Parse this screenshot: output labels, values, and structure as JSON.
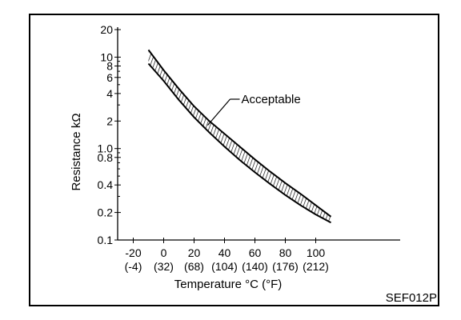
{
  "chart_data": {
    "type": "area",
    "xlabel": "Temperature °C (°F)",
    "ylabel": "Resistance kΩ",
    "yscale": "log",
    "xlim": [
      -30,
      150
    ],
    "ylim": [
      0.1,
      20
    ],
    "x_ticks": [
      -20,
      0,
      20,
      40,
      60,
      80,
      100
    ],
    "x_tick_labels": [
      "-20",
      "0",
      "20",
      "40",
      "60",
      "80",
      "100"
    ],
    "x_tick_sublabels": [
      "(-4)",
      "(32)",
      "(68)",
      "(104)",
      "(140)",
      "(176)",
      "(212)"
    ],
    "y_ticks": [
      0.1,
      0.2,
      0.4,
      0.8,
      1.0,
      2,
      4,
      6,
      8,
      10,
      20
    ],
    "y_tick_labels": [
      "0.1",
      "0.2",
      "0.4",
      "0.8",
      "1.0",
      "2",
      "4",
      "6",
      "8",
      "10",
      "20"
    ],
    "series": [
      {
        "name": "Acceptable",
        "x": [
          -10,
          0,
          10,
          20,
          30,
          40,
          50,
          60,
          70,
          80,
          90,
          100,
          110
        ],
        "upper": [
          12,
          7.2,
          4.5,
          2.9,
          2.0,
          1.45,
          1.05,
          0.76,
          0.56,
          0.42,
          0.32,
          0.24,
          0.18
        ],
        "lower": [
          8.5,
          5.5,
          3.4,
          2.2,
          1.5,
          1.05,
          0.75,
          0.55,
          0.41,
          0.31,
          0.24,
          0.19,
          0.155
        ]
      }
    ],
    "annotations": [
      {
        "text": "Acceptable",
        "x": 30,
        "y": 1.8
      }
    ],
    "grid": false,
    "legend": "none"
  },
  "figure_code": "SEF012P"
}
